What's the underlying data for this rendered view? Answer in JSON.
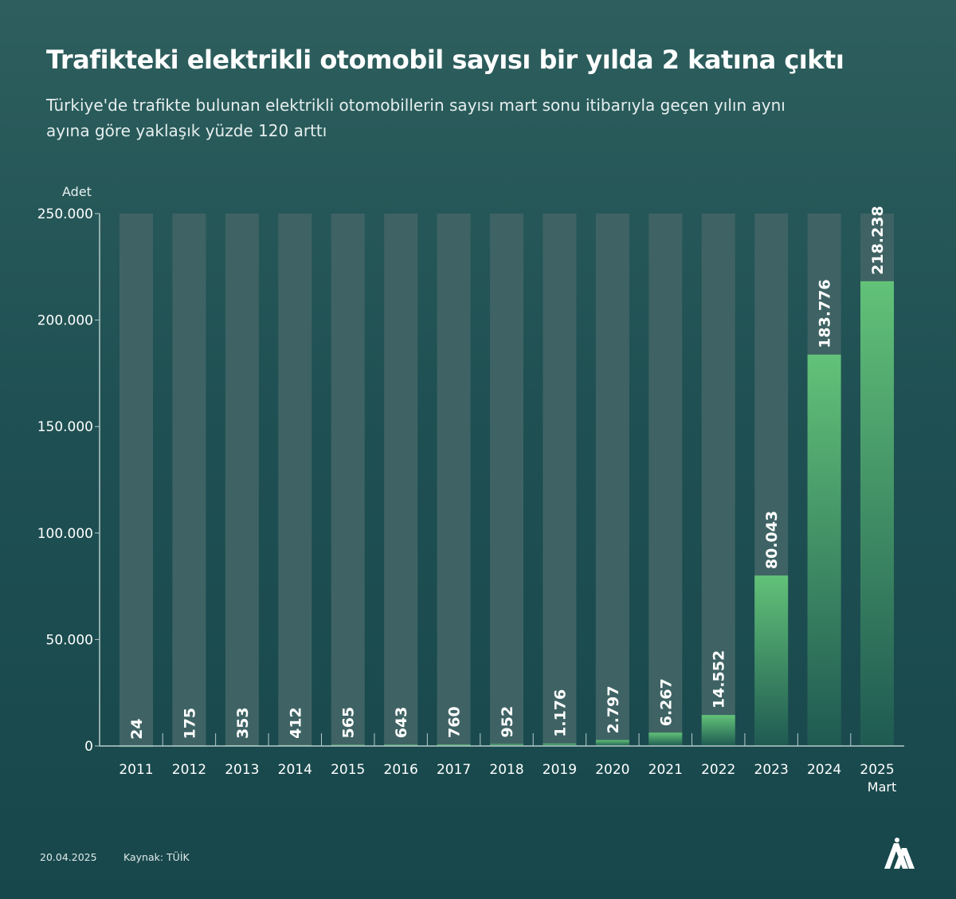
{
  "title": "Trafikteki elektrikli otomobil sayısı bir yılda 2 katına çıktı",
  "subtitle": "Türkiye'de trafikte bulunan elektrikli otomobillerin sayısı mart sonu itibarıyla geçen yılın aynı ayına göre yaklaşık yüzde 120 arttı",
  "footer": {
    "date": "20.04.2025",
    "source": "Kaynak: TÜİK",
    "logo": "AA"
  },
  "colors": {
    "bar": "#5fbf74",
    "bar_bottom": "#1f5a52",
    "bar_background": "#3f6364",
    "axis": "#b8cccc"
  },
  "chart_data": {
    "type": "bar",
    "ylabel": "Adet",
    "ylim": [
      0,
      250000
    ],
    "yticks": [
      0,
      50000,
      100000,
      150000,
      200000,
      250000
    ],
    "ytick_labels": [
      "0",
      "50.000",
      "100.000",
      "150.000",
      "200.000",
      "250.000"
    ],
    "categories": [
      "2011",
      "2012",
      "2013",
      "2014",
      "2015",
      "2016",
      "2017",
      "2018",
      "2019",
      "2020",
      "2021",
      "2022",
      "2023",
      "2024",
      "2025"
    ],
    "category_sublabels": [
      "",
      "",
      "",
      "",
      "",
      "",
      "",
      "",
      "",
      "",
      "",
      "",
      "",
      "",
      "Mart"
    ],
    "values": [
      24,
      175,
      353,
      412,
      565,
      643,
      760,
      952,
      1176,
      2797,
      6267,
      14552,
      80043,
      183776,
      218238
    ],
    "data_labels": [
      "24",
      "175",
      "353",
      "412",
      "565",
      "643",
      "760",
      "952",
      "1.176",
      "2.797",
      "6.267",
      "14.552",
      "80.043",
      "183.776",
      "218.238"
    ],
    "grid": false,
    "legend": "none"
  }
}
